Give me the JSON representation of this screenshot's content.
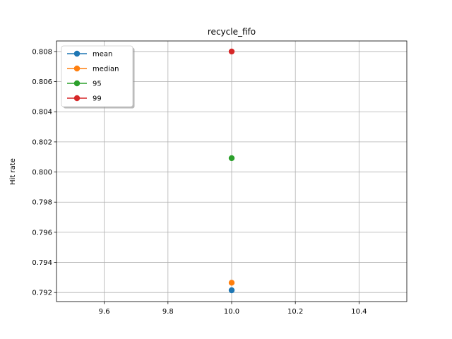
{
  "chart_data": {
    "type": "scatter",
    "title": "recycle_fifo",
    "xlabel": "",
    "ylabel": "Hit rate",
    "xlim": [
      9.45,
      10.55
    ],
    "ylim": [
      0.7914,
      0.8087
    ],
    "xticks": [
      9.6,
      9.8,
      10.0,
      10.2,
      10.4
    ],
    "xtick_labels": [
      "9.6",
      "9.8",
      "10.0",
      "10.2",
      "10.4"
    ],
    "yticks": [
      0.792,
      0.794,
      0.796,
      0.798,
      0.8,
      0.802,
      0.804,
      0.806,
      0.808
    ],
    "ytick_labels": [
      "0.792",
      "0.794",
      "0.796",
      "0.798",
      "0.800",
      "0.802",
      "0.804",
      "0.806",
      "0.808"
    ],
    "grid": true,
    "legend_position": "top-left",
    "series": [
      {
        "name": "mean",
        "color": "#1f77b4",
        "x": [
          10.0
        ],
        "y": [
          0.79215
        ]
      },
      {
        "name": "median",
        "color": "#ff7f0e",
        "x": [
          10.0
        ],
        "y": [
          0.79265
        ]
      },
      {
        "name": "95",
        "color": "#2ca02c",
        "x": [
          10.0
        ],
        "y": [
          0.80092
        ]
      },
      {
        "name": "99",
        "color": "#d62728",
        "x": [
          10.0
        ],
        "y": [
          0.808
        ]
      }
    ]
  }
}
